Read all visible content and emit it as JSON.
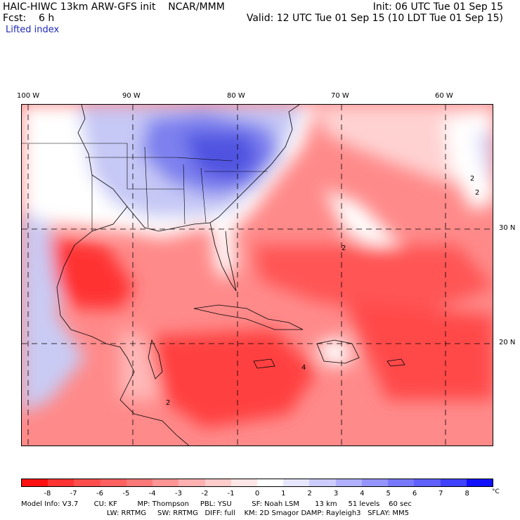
{
  "header": {
    "title_line": "HAIC-HIWC 13km ARW-GFS init    NCAR/MMM",
    "fcst_line": "Fcst:    6 h",
    "field": "Lifted index",
    "init": "Init: 06 UTC Tue 01 Sep 15",
    "valid": "Valid: 12 UTC Tue 01 Sep 15 (10 LDT Tue 01 Sep 15)"
  },
  "map": {
    "longitude_labels": [
      "100 W",
      "90 W",
      "80 W",
      "70 W",
      "60 W"
    ],
    "latitude_labels": [
      "30 N",
      "20 N"
    ],
    "contour_labels": [
      "2",
      "2",
      "2",
      "4",
      "2"
    ]
  },
  "colorbar": {
    "ticks": [
      "-8",
      "-7",
      "-6",
      "-5",
      "-4",
      "-3",
      "-2",
      "-1",
      "0",
      "1",
      "2",
      "3",
      "4",
      "5",
      "6",
      "7",
      "8"
    ],
    "unit": "°C",
    "colors": [
      "#ff1010",
      "#ff3333",
      "#ff4d4d",
      "#ff6060",
      "#ff7878",
      "#ff9494",
      "#ffb0b0",
      "#ffcccc",
      "#ffe6e6",
      "#ffffff",
      "#e6e6ff",
      "#ccccff",
      "#b0b0ff",
      "#9494ff",
      "#7878ff",
      "#6060ff",
      "#4040ff",
      "#1010ff"
    ]
  },
  "model_info": {
    "line1": "Model Info: V3.7       CU: KF         MP: Thompson     PBL: YSU         SF: Noah LSM       13 km     51 levels    60 sec",
    "line2": "LW: RRTMG     SW: RRTMG   DIFF: full    KM: 2D Smagor DAMP: Rayleigh3   SFLAY: MM5"
  }
}
